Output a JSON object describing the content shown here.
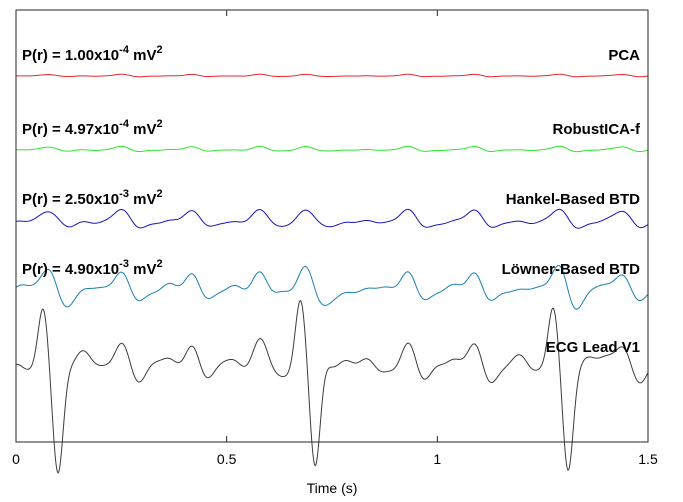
{
  "chart_data": {
    "type": "line",
    "xlabel": "Time (s)",
    "xlim": [
      0,
      1.5
    ],
    "x_ticks": [
      "0",
      "0.5",
      "1",
      "1.5"
    ],
    "grid": false,
    "series": [
      {
        "name": "PCA",
        "power_prefix": "P(r) = 1.00x10",
        "power_exp": "-4",
        "power_unit": " mV",
        "power_unit_exp": "2",
        "color": "#e8262b",
        "y_offset": 0,
        "kind": "small",
        "amp": 0.12
      },
      {
        "name": "RobustICA-f",
        "power_prefix": "P(r) = 4.97x10",
        "power_exp": "-4",
        "power_unit": " mV",
        "power_unit_exp": "2",
        "color": "#2ee62e",
        "y_offset": 1,
        "kind": "small",
        "amp": 0.25
      },
      {
        "name": "Hankel-Based BTD",
        "power_prefix": "P(r) = 2.50x10",
        "power_exp": "-3",
        "power_unit": " mV",
        "power_unit_exp": "2",
        "color": "#1515b8",
        "y_offset": 2,
        "kind": "medium",
        "amp": 0.55
      },
      {
        "name": "Löwner-Based BTD",
        "power_prefix": "P(r) = 4.90x10",
        "power_exp": "-3",
        "power_unit": " mV",
        "power_unit_exp": "2",
        "color": "#1a7fb3",
        "y_offset": 3,
        "kind": "large",
        "amp": 0.9
      },
      {
        "name": "ECG Lead V1",
        "power_prefix": "",
        "power_exp": "",
        "power_unit": "",
        "power_unit_exp": "",
        "color": "#3c3c3c",
        "y_offset": 4,
        "kind": "ecg",
        "amp": 1.0
      }
    ],
    "beats_s": [
      0.08,
      0.25,
      0.42,
      0.58,
      0.69,
      0.93,
      1.09,
      1.29,
      1.44
    ]
  }
}
